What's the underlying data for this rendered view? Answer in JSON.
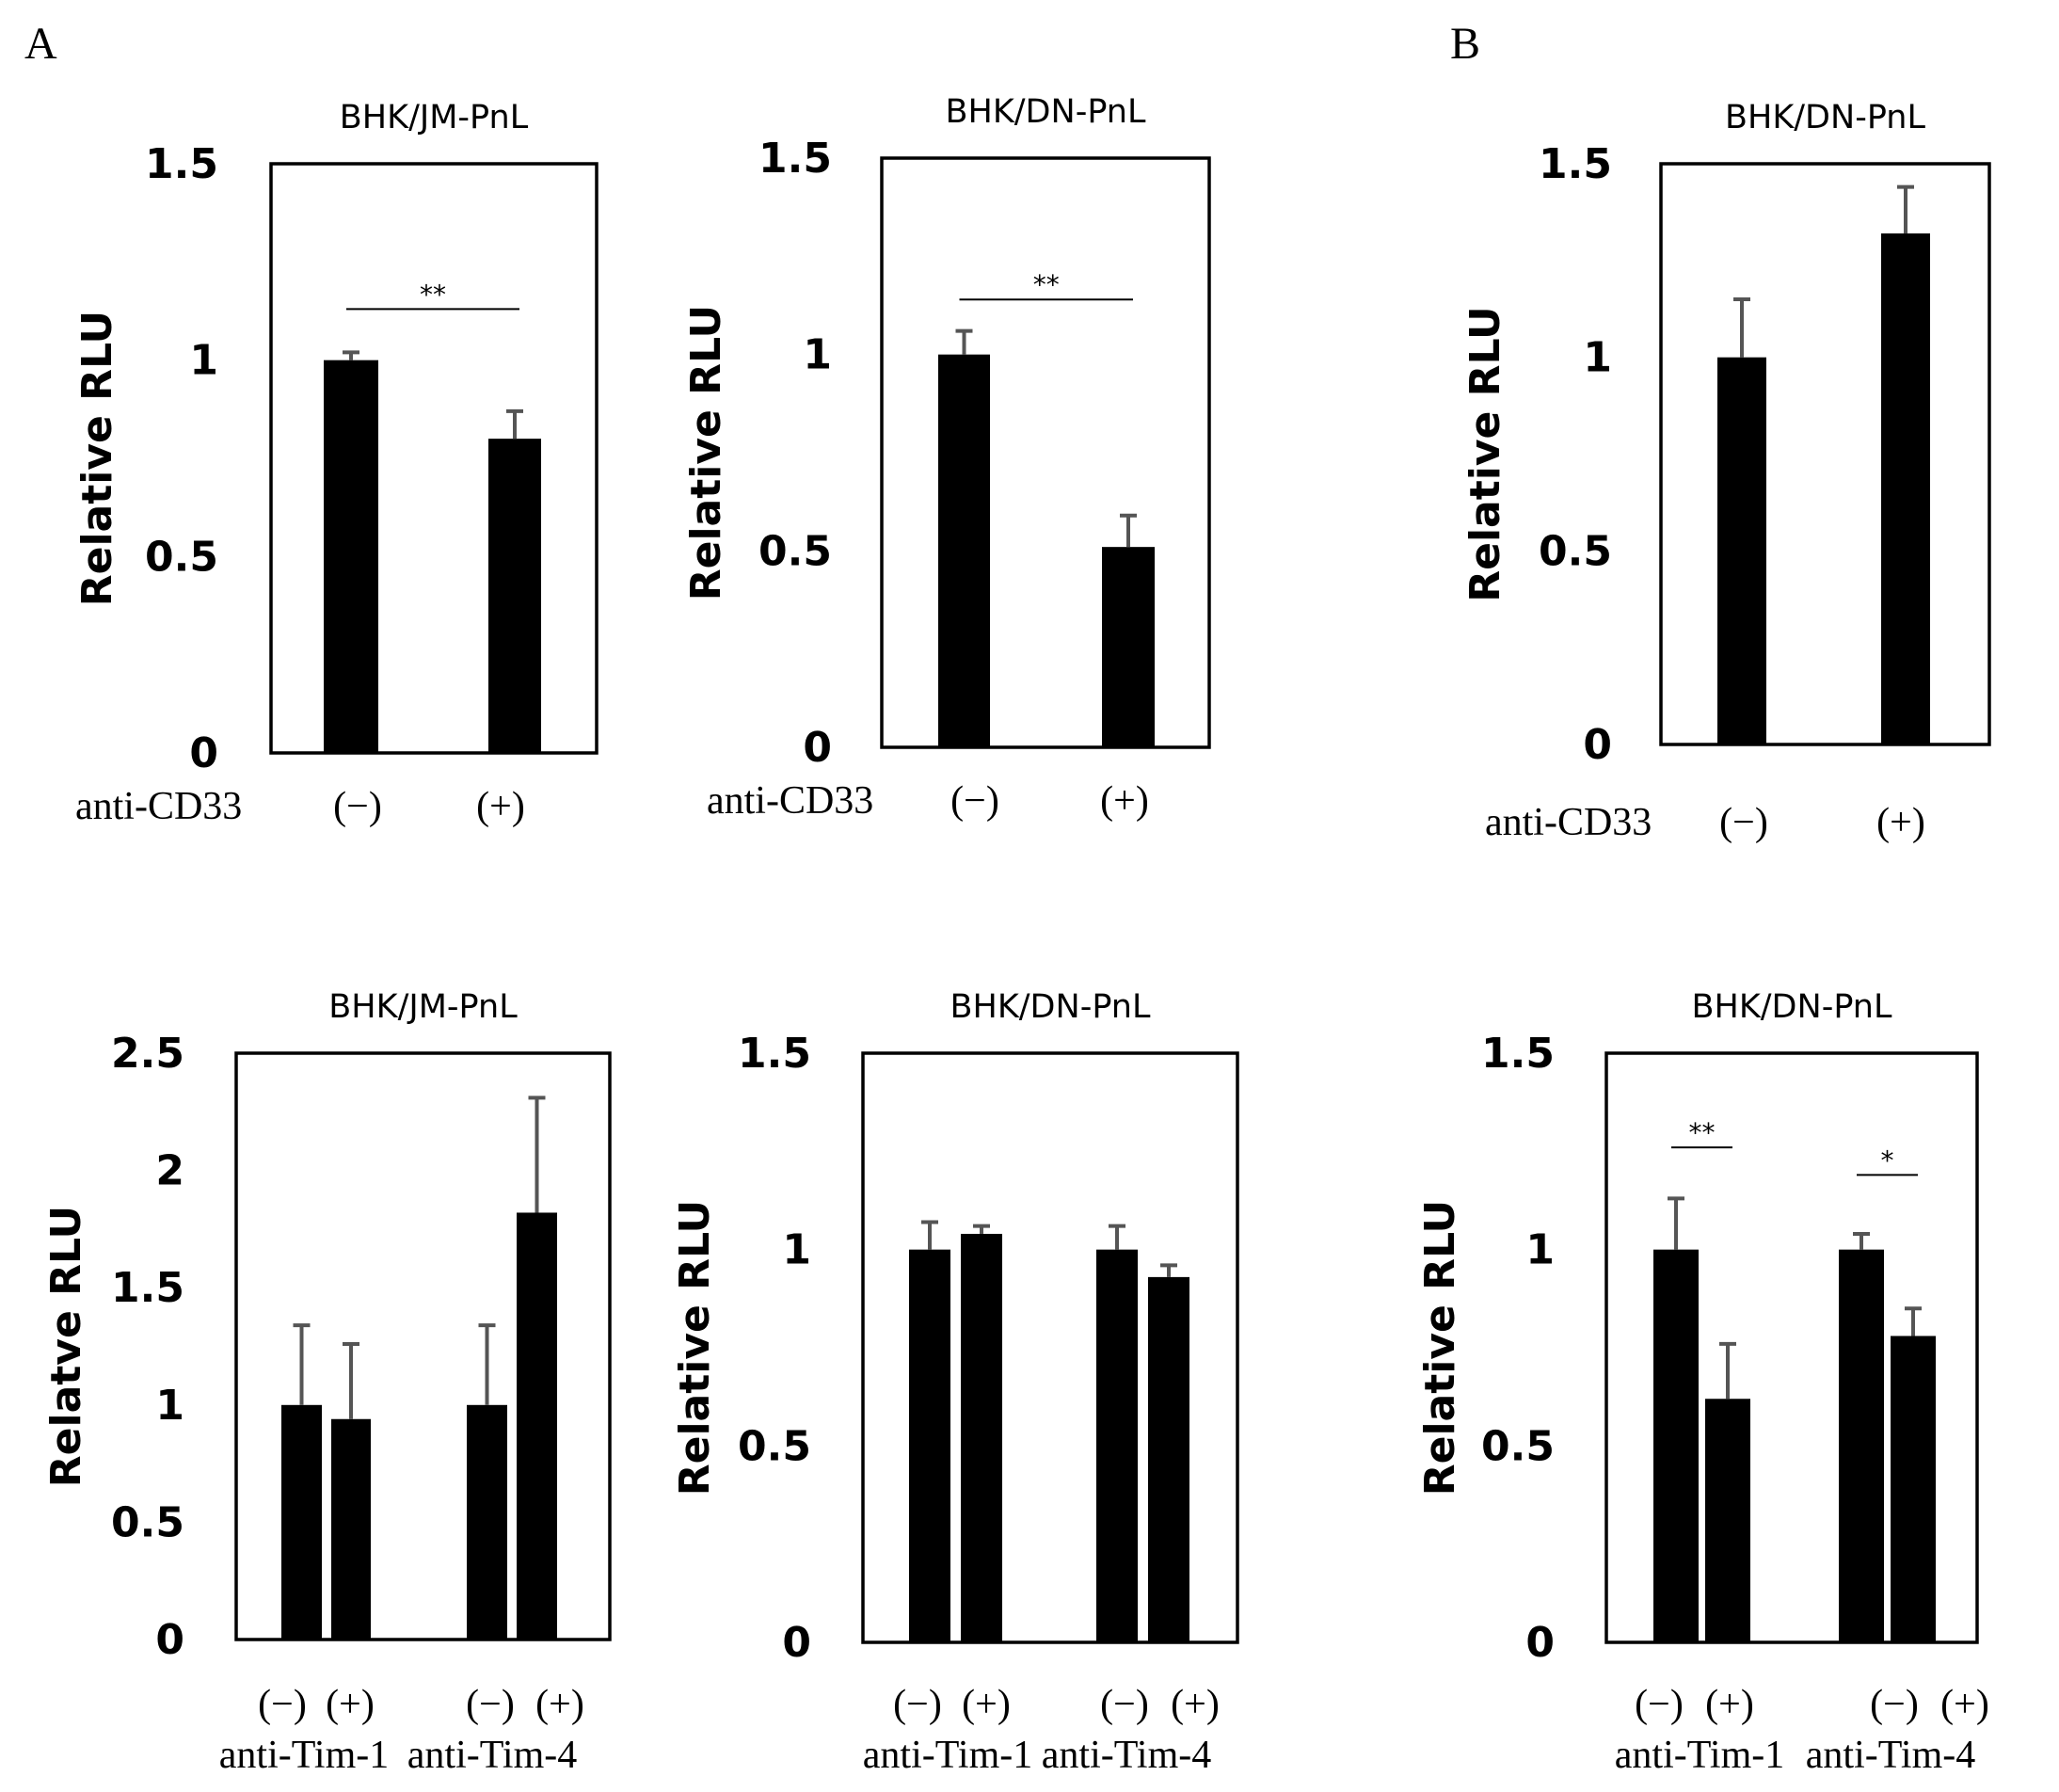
{
  "panel_labels": [
    "A",
    "B"
  ],
  "chart_data": [
    {
      "id": "a-top-left",
      "type": "bar",
      "title": "BHK/JM-PnL",
      "ylabel": "Relative RLU",
      "ylim": [
        0,
        1.5
      ],
      "yticks": [
        "0",
        "0.5",
        "1",
        "1.5"
      ],
      "xlabel": "anti-CD33",
      "categories": [
        "(−)",
        "(+)"
      ],
      "values": [
        1.0,
        0.8
      ],
      "errors": [
        0.02,
        0.07
      ],
      "significance": [
        {
          "label": "**",
          "from": 0,
          "to": 1,
          "y": 1.13
        }
      ]
    },
    {
      "id": "a-top-middle",
      "type": "bar",
      "title": "BHK/DN-PnL",
      "ylabel": "Relative RLU",
      "ylim": [
        0,
        1.5
      ],
      "yticks": [
        "0",
        "0.5",
        "1",
        "1.5"
      ],
      "xlabel": "anti-CD33",
      "categories": [
        "(−)",
        "(+)"
      ],
      "values": [
        1.0,
        0.51
      ],
      "errors": [
        0.06,
        0.08
      ],
      "significance": [
        {
          "label": "**",
          "from": 0,
          "to": 1,
          "y": 1.14
        }
      ]
    },
    {
      "id": "b-top",
      "type": "bar",
      "title": "BHK/DN-PnL",
      "ylabel": "Relative RLU",
      "ylim": [
        0,
        1.5
      ],
      "yticks": [
        "0",
        "0.5",
        "1",
        "1.5"
      ],
      "xlabel": "anti-CD33",
      "categories": [
        "(−)",
        "(+)"
      ],
      "values": [
        1.0,
        1.32
      ],
      "errors": [
        0.15,
        0.12
      ],
      "significance": []
    },
    {
      "id": "a-bottom-left",
      "type": "bar",
      "title": "BHK/JM-PnL",
      "ylabel": "Relatve RLU",
      "ylim": [
        0,
        2.5
      ],
      "yticks": [
        "0",
        "0.5",
        "1",
        "1.5",
        "2",
        "2.5"
      ],
      "categories": [
        "(−)",
        "(+)",
        "(−)",
        "(+)"
      ],
      "groups": [
        "anti-Tim-1",
        "anti-Tim-4"
      ],
      "values": [
        1.0,
        0.94,
        1.0,
        1.82
      ],
      "errors": [
        0.34,
        0.32,
        0.34,
        0.49
      ],
      "significance": []
    },
    {
      "id": "a-bottom-middle",
      "type": "bar",
      "title": "BHK/DN-PnL",
      "ylabel": "Relative RLU",
      "ylim": [
        0,
        1.5
      ],
      "yticks": [
        "0",
        "0.5",
        "1",
        "1.5"
      ],
      "categories": [
        "(−)",
        "(+)",
        "(−)",
        "(+)"
      ],
      "groups": [
        "anti-Tim-1",
        "anti-Tim-4"
      ],
      "values": [
        1.0,
        1.04,
        1.0,
        0.93
      ],
      "errors": [
        0.07,
        0.02,
        0.06,
        0.03
      ],
      "significance": []
    },
    {
      "id": "b-bottom",
      "type": "bar",
      "title": "BHK/DN-PnL",
      "ylabel": "Relative RLU",
      "ylim": [
        0,
        1.5
      ],
      "yticks": [
        "0",
        "0.5",
        "1",
        "1.5"
      ],
      "categories": [
        "(−)",
        "(+)",
        "(−)",
        "(+)"
      ],
      "groups": [
        "anti-Tim-1",
        "anti-Tim-4"
      ],
      "values": [
        1.0,
        0.62,
        1.0,
        0.78
      ],
      "errors": [
        0.13,
        0.14,
        0.04,
        0.07
      ],
      "significance": [
        {
          "label": "**",
          "from": 0,
          "to": 1,
          "y": 1.26
        },
        {
          "label": "*",
          "from": 2,
          "to": 3,
          "y": 1.19
        }
      ]
    }
  ]
}
